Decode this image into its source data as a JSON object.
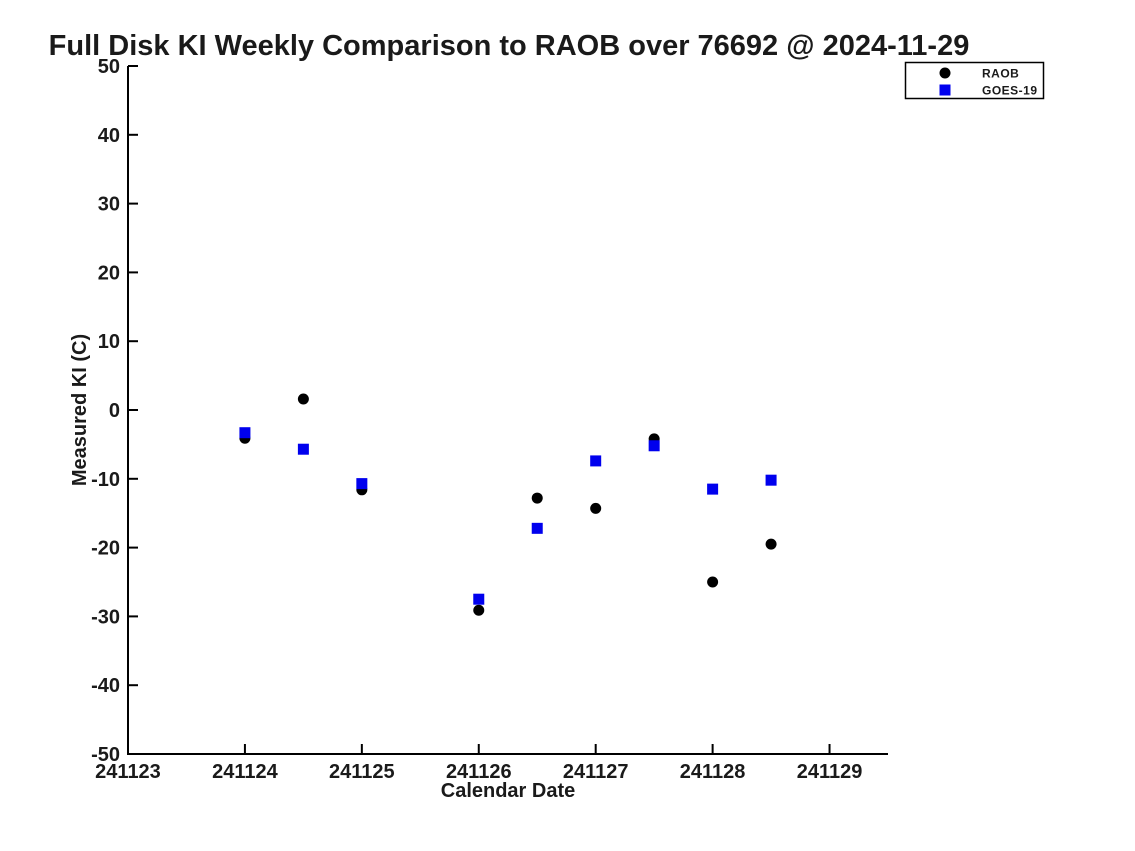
{
  "figure": {
    "background": "#ffffff"
  },
  "chart_data": {
    "type": "scatter",
    "title": "Full Disk KI Weekly Comparison to RAOB over 76692 @ 2024-11-29",
    "xlabel": "Calendar Date",
    "ylabel": "Measured KI (C)",
    "xlim": [
      241123,
      241129.5
    ],
    "ylim": [
      -50,
      50
    ],
    "x_ticks": [
      241123,
      241124,
      241125,
      241126,
      241127,
      241128,
      241129
    ],
    "y_ticks": [
      50,
      40,
      30,
      20,
      10,
      0,
      -10,
      -20,
      -30,
      -40,
      -50
    ],
    "grid": false,
    "legend": {
      "position": "top-right",
      "entries": [
        {
          "label": "RAOB",
          "marker": "circle",
          "color": "#000000"
        },
        {
          "label": "GOES-19",
          "marker": "square",
          "color": "#0000ee"
        }
      ]
    },
    "series": [
      {
        "name": "RAOB",
        "marker": "circle",
        "color": "#000000",
        "x": [
          241124.0,
          241124.5,
          241125.0,
          241126.0,
          241126.5,
          241127.0,
          241127.5,
          241128.0,
          241128.5
        ],
        "y": [
          -4.1,
          1.6,
          -11.6,
          -29.1,
          -12.8,
          -14.3,
          -4.2,
          -25.0,
          -19.5
        ]
      },
      {
        "name": "GOES-19",
        "marker": "square",
        "color": "#0000ee",
        "x": [
          241124.0,
          241124.5,
          241125.0,
          241126.0,
          241126.5,
          241127.0,
          241127.5,
          241128.0,
          241128.5
        ],
        "y": [
          -3.3,
          -5.7,
          -10.7,
          -27.5,
          -17.2,
          -7.4,
          -5.2,
          -11.5,
          -10.2
        ]
      }
    ],
    "axis_color": "#000000"
  }
}
